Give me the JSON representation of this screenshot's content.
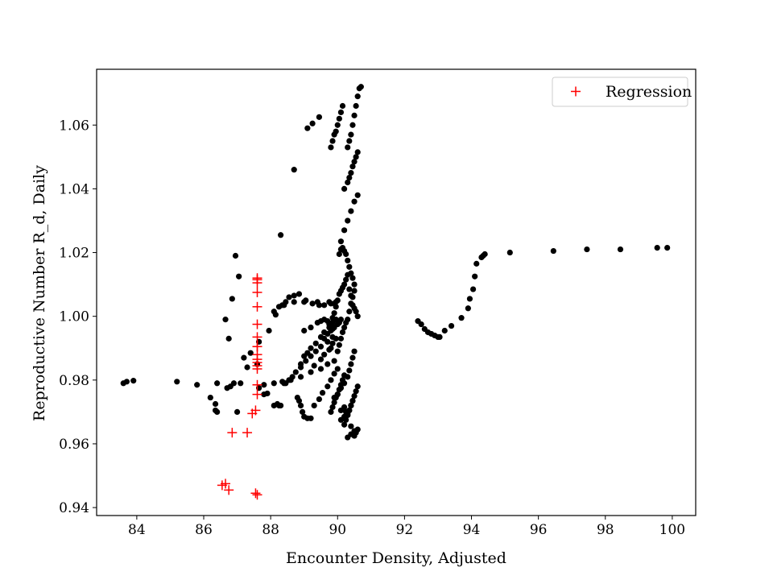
{
  "chart_data": {
    "type": "scatter",
    "title": "",
    "xlabel": "Encounter Density, Adjusted",
    "ylabel": "Reproductive Number R_d, Daily",
    "xlim": [
      82.8,
      100.7
    ],
    "ylim": [
      0.9375,
      1.0775
    ],
    "xticks": [
      84,
      86,
      88,
      90,
      92,
      94,
      96,
      98,
      100
    ],
    "yticks": [
      0.94,
      0.96,
      0.98,
      1.0,
      1.02,
      1.04,
      1.06
    ],
    "xtick_labels": [
      "84",
      "86",
      "88",
      "90",
      "92",
      "94",
      "96",
      "98",
      "100"
    ],
    "ytick_labels": [
      "0.94",
      "0.96",
      "0.98",
      "1.00",
      "1.02",
      "1.04",
      "1.06"
    ],
    "grid": false,
    "legend": {
      "position": "top-right",
      "entries": [
        "Regression"
      ]
    },
    "colors": {
      "observed": "#000000",
      "regression": "#ff0000"
    },
    "series": [
      {
        "marker": "circle",
        "color": "#000000",
        "x": [
          83.6,
          83.7,
          83.9,
          85.2,
          85.8,
          86.2,
          86.35,
          86.35,
          86.4,
          86.4,
          86.7,
          86.8,
          86.9,
          87.0,
          87.1,
          87.3,
          87.6,
          87.8,
          88.1,
          88.35,
          88.6,
          88.9,
          89.2,
          89.5,
          89.7,
          89.9,
          86.65,
          86.75,
          86.85,
          86.95,
          87.05,
          87.2,
          87.4,
          87.65,
          87.95,
          88.15,
          88.4,
          88.7,
          89.0,
          89.4,
          89.75,
          89.9,
          87.65,
          87.8,
          87.9,
          88.1,
          88.2,
          88.25,
          88.3,
          88.4,
          88.45,
          88.55,
          88.65,
          88.75,
          88.9,
          89.05,
          89.2,
          89.35,
          89.5,
          89.7,
          89.85,
          88.8,
          88.85,
          88.9,
          88.95,
          89.0,
          89.1,
          89.2,
          88.1,
          88.25,
          88.35,
          88.45,
          88.55,
          88.7,
          88.85,
          89.05,
          89.25,
          89.45,
          89.6,
          89.8,
          89.95,
          88.9,
          89.0,
          89.1,
          89.2,
          89.35,
          89.5,
          89.6,
          89.75,
          89.85,
          89.95,
          89.3,
          89.45,
          89.55,
          89.7,
          89.8,
          89.9,
          90.0,
          89.0,
          89.2,
          89.4,
          89.5,
          89.6,
          89.7,
          89.75,
          89.8,
          89.85,
          89.6,
          89.7,
          89.8,
          89.9,
          90.0,
          90.05,
          90.1,
          89.85,
          89.9,
          89.95,
          90.0,
          90.05,
          90.1,
          90.15,
          90.2,
          90.25,
          90.3,
          90.35,
          90.4,
          90.45,
          90.5,
          90.55,
          90.6,
          90.0,
          90.05,
          90.1,
          90.15,
          90.2,
          90.25,
          90.3,
          90.35,
          90.4,
          90.45,
          90.5,
          90.05,
          90.1,
          90.15,
          90.2,
          90.25,
          90.3,
          90.35,
          90.4,
          90.45,
          90.5,
          90.1,
          90.2,
          90.3,
          90.4,
          90.5,
          90.6,
          90.2,
          90.3,
          90.35,
          90.4,
          90.45,
          90.5,
          90.55,
          90.6,
          90.3,
          90.35,
          90.4,
          90.45,
          90.5,
          90.55,
          90.6,
          90.65,
          90.7,
          89.8,
          89.85,
          89.9,
          89.95,
          90.0,
          90.05,
          90.1,
          90.15,
          89.9,
          90.0,
          90.1,
          90.2,
          90.3,
          90.35,
          90.4,
          90.45,
          90.5,
          89.3,
          89.5,
          89.6,
          89.75,
          89.8,
          89.85,
          89.95,
          89.8,
          89.85,
          89.9,
          89.95,
          90.0,
          90.05,
          90.1,
          90.15,
          90.2,
          90.2,
          90.25,
          90.3,
          90.35,
          90.4,
          90.45,
          90.5,
          90.55,
          90.6,
          90.1,
          90.2,
          90.25,
          90.3,
          90.35,
          90.4,
          90.45,
          90.3,
          90.4,
          90.5,
          90.55,
          90.6,
          90.1,
          90.2,
          90.3,
          90.4,
          90.5,
          88.3,
          88.7,
          89.1,
          89.25,
          89.45,
          92.4,
          92.5,
          92.6,
          92.7,
          92.8,
          92.9,
          93.0,
          93.05,
          93.2,
          93.4,
          93.7,
          93.9,
          93.95,
          94.05,
          94.1,
          94.15,
          94.3,
          94.35,
          94.4,
          95.15,
          96.45,
          97.45,
          98.45,
          99.55,
          99.85
        ],
        "y": [
          0.979,
          0.9795,
          0.9798,
          0.9795,
          0.9785,
          0.9745,
          0.9725,
          0.9705,
          0.97,
          0.979,
          0.9775,
          0.978,
          0.979,
          0.97,
          0.979,
          0.984,
          0.985,
          0.9785,
          0.979,
          0.9795,
          0.98,
          0.981,
          0.9825,
          0.9835,
          0.985,
          0.986,
          0.999,
          0.993,
          1.0055,
          1.019,
          1.0125,
          0.987,
          0.9885,
          0.992,
          0.9955,
          1.0005,
          1.0035,
          1.0045,
          1.0045,
          1.0045,
          1.0045,
          1.004,
          0.9775,
          0.9755,
          0.9758,
          0.972,
          0.9725,
          0.972,
          0.972,
          0.979,
          0.979,
          0.98,
          0.981,
          0.9825,
          0.984,
          0.986,
          0.9875,
          0.989,
          0.9905,
          0.992,
          0.9935,
          0.9745,
          0.9735,
          0.972,
          0.97,
          0.9685,
          0.968,
          0.968,
          1.0015,
          1.003,
          1.0035,
          1.0045,
          1.006,
          1.0065,
          1.007,
          1.005,
          1.004,
          1.0035,
          1.0035,
          1.004,
          1.0045,
          0.985,
          0.9875,
          0.9885,
          0.99,
          0.9915,
          0.9935,
          0.995,
          0.9965,
          0.998,
          0.999,
          0.972,
          0.974,
          0.976,
          0.978,
          0.98,
          0.982,
          0.9835,
          0.9955,
          0.9965,
          0.998,
          0.9985,
          0.999,
          0.9985,
          0.9975,
          0.997,
          0.996,
          0.993,
          0.9945,
          0.9955,
          0.9965,
          0.9975,
          0.998,
          0.999,
          0.9995,
          1.001,
          1.003,
          1.005,
          1.007,
          1.008,
          1.009,
          1.01,
          1.0115,
          1.013,
          1.0085,
          1.0065,
          1.0035,
          1.0025,
          1.0015,
          1.0,
          0.989,
          0.991,
          0.993,
          0.995,
          0.9965,
          0.998,
          0.999,
          1.0015,
          1.004,
          1.006,
          1.008,
          1.0195,
          1.021,
          1.0215,
          1.0205,
          1.0195,
          1.0175,
          1.0155,
          1.0135,
          1.012,
          1.01,
          1.0235,
          1.027,
          1.03,
          1.033,
          1.036,
          1.038,
          1.04,
          1.042,
          1.0435,
          1.045,
          1.047,
          1.0485,
          1.05,
          1.0515,
          1.053,
          1.055,
          1.057,
          1.06,
          1.063,
          1.066,
          1.069,
          1.0715,
          1.072,
          1.053,
          1.055,
          1.057,
          1.058,
          1.06,
          1.062,
          1.064,
          1.066,
          0.9745,
          0.9755,
          0.9775,
          0.979,
          0.981,
          0.983,
          0.985,
          0.987,
          0.989,
          0.9845,
          0.9865,
          0.988,
          0.9895,
          0.99,
          0.9915,
          0.993,
          0.97,
          0.9715,
          0.973,
          0.9745,
          0.9755,
          0.977,
          0.9785,
          0.98,
          0.9815,
          0.966,
          0.9675,
          0.969,
          0.9705,
          0.972,
          0.9735,
          0.975,
          0.9765,
          0.978,
          0.9705,
          0.9715,
          0.97,
          0.969,
          0.9705,
          0.972,
          0.9735,
          0.962,
          0.963,
          0.9625,
          0.9635,
          0.9645,
          0.9675,
          0.9685,
          0.9695,
          0.9655,
          0.964,
          1.0255,
          1.046,
          1.059,
          1.0605,
          1.0625,
          0.9985,
          0.9975,
          0.996,
          0.995,
          0.9945,
          0.994,
          0.9935,
          0.9935,
          0.9955,
          0.997,
          0.9995,
          1.0025,
          1.0055,
          1.0085,
          1.0125,
          1.0165,
          1.0185,
          1.019,
          1.0195,
          1.02,
          1.0205,
          1.021,
          1.021,
          1.0215,
          1.0215
        ]
      },
      {
        "name": "Regression",
        "marker": "plus",
        "color": "#ff0000",
        "x": [
          86.55,
          86.65,
          86.75,
          86.85,
          87.3,
          87.45,
          87.55,
          87.55,
          87.6,
          87.6,
          87.6,
          87.6,
          87.6,
          87.6,
          87.6,
          87.6,
          87.6,
          87.6,
          87.6,
          87.6,
          87.6,
          87.6,
          87.6,
          87.6,
          87.6
        ],
        "y": [
          0.947,
          0.9475,
          0.9455,
          0.9635,
          0.9635,
          0.9695,
          0.9705,
          0.9445,
          0.944,
          0.9755,
          0.9785,
          0.9835,
          0.9845,
          0.9855,
          0.9865,
          0.988,
          0.9905,
          0.9935,
          0.9975,
          1.003,
          1.0075,
          1.0105,
          1.0115,
          1.012,
          0.9905
        ]
      }
    ]
  }
}
